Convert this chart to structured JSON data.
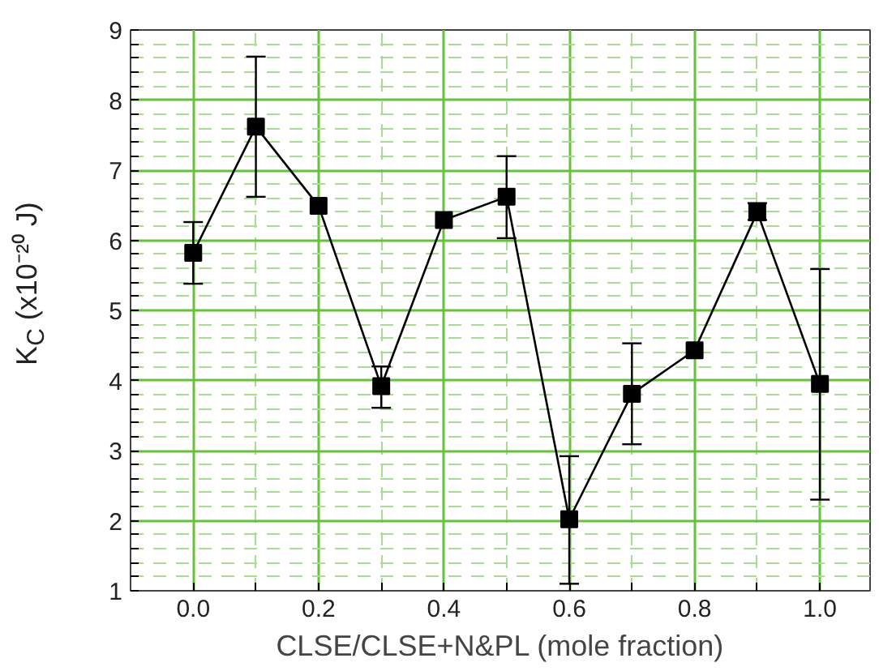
{
  "chart_data": {
    "type": "line",
    "xlabel": "CLSE/CLSE+N&PL (mole fraction)",
    "ylabel": "K$_{C}$ (x10⁻²⁰ J)",
    "x": [
      0.0,
      0.1,
      0.2,
      0.3,
      0.4,
      0.5,
      0.6,
      0.7,
      0.8,
      0.9,
      1.0
    ],
    "series": [
      {
        "color": "#000000",
        "values": [
          5.82,
          7.62,
          6.49,
          3.92,
          6.29,
          6.62,
          2.02,
          3.81,
          4.43,
          6.4,
          3.95
        ],
        "errors": [
          [
            5.38,
            6.26
          ],
          [
            6.62,
            8.62
          ],
          null,
          [
            3.61,
            4.2
          ],
          null,
          [
            6.03,
            7.2
          ],
          [
            1.1,
            2.92
          ],
          [
            3.09,
            4.53
          ],
          null,
          [
            6.29,
            6.53
          ],
          [
            2.3,
            5.59
          ]
        ]
      }
    ],
    "xlim": [
      -0.1,
      1.08
    ],
    "ylim": [
      1,
      9
    ],
    "xticks": [
      {
        "value": 0.0,
        "label": "0.0"
      },
      {
        "value": 0.1,
        "label": null
      },
      0.2,
      {
        "value": 0.3,
        "label": null
      },
      0.4,
      {
        "value": 0.5,
        "label": null
      },
      0.6,
      {
        "value": 0.7,
        "label": null
      },
      0.8,
      {
        "value": 0.9,
        "label": null
      },
      {
        "value": 1.0,
        "label": "1.0"
      }
    ],
    "yticks": [
      1,
      {
        "value": 1.2,
        "label": null
      },
      {
        "value": 1.4,
        "label": null
      },
      {
        "value": 1.6,
        "label": null
      },
      {
        "value": 1.8,
        "label": null
      },
      2,
      {
        "value": 2.2,
        "label": null
      },
      {
        "value": 2.4,
        "label": null
      },
      {
        "value": 2.6,
        "label": null
      },
      {
        "value": 2.8,
        "label": null
      },
      3,
      {
        "value": 3.2,
        "label": null
      },
      {
        "value": 3.4,
        "label": null
      },
      {
        "value": 3.6,
        "label": null
      },
      {
        "value": 3.8,
        "label": null
      },
      4,
      {
        "value": 4.2,
        "label": null
      },
      {
        "value": 4.4,
        "label": null
      },
      {
        "value": 4.6,
        "label": null
      },
      {
        "value": 4.8,
        "label": null
      },
      5,
      {
        "value": 5.2,
        "label": null
      },
      {
        "value": 5.4,
        "label": null
      },
      {
        "value": 5.6,
        "label": null
      },
      {
        "value": 5.8,
        "label": null
      },
      6,
      {
        "value": 6.2,
        "label": null
      },
      {
        "value": 6.4,
        "label": null
      },
      {
        "value": 6.6,
        "label": null
      },
      {
        "value": 6.8,
        "label": null
      },
      7,
      {
        "value": 7.2,
        "label": null
      },
      {
        "value": 7.4,
        "label": null
      },
      {
        "value": 7.6,
        "label": null
      },
      {
        "value": 7.8,
        "label": null
      },
      8,
      {
        "value": 8.2,
        "label": null
      },
      {
        "value": 8.4,
        "label": null
      },
      {
        "value": 8.6,
        "label": null
      },
      {
        "value": 8.8,
        "label": null
      },
      9
    ],
    "grid": true,
    "marker": "square",
    "line_style": "solid"
  }
}
